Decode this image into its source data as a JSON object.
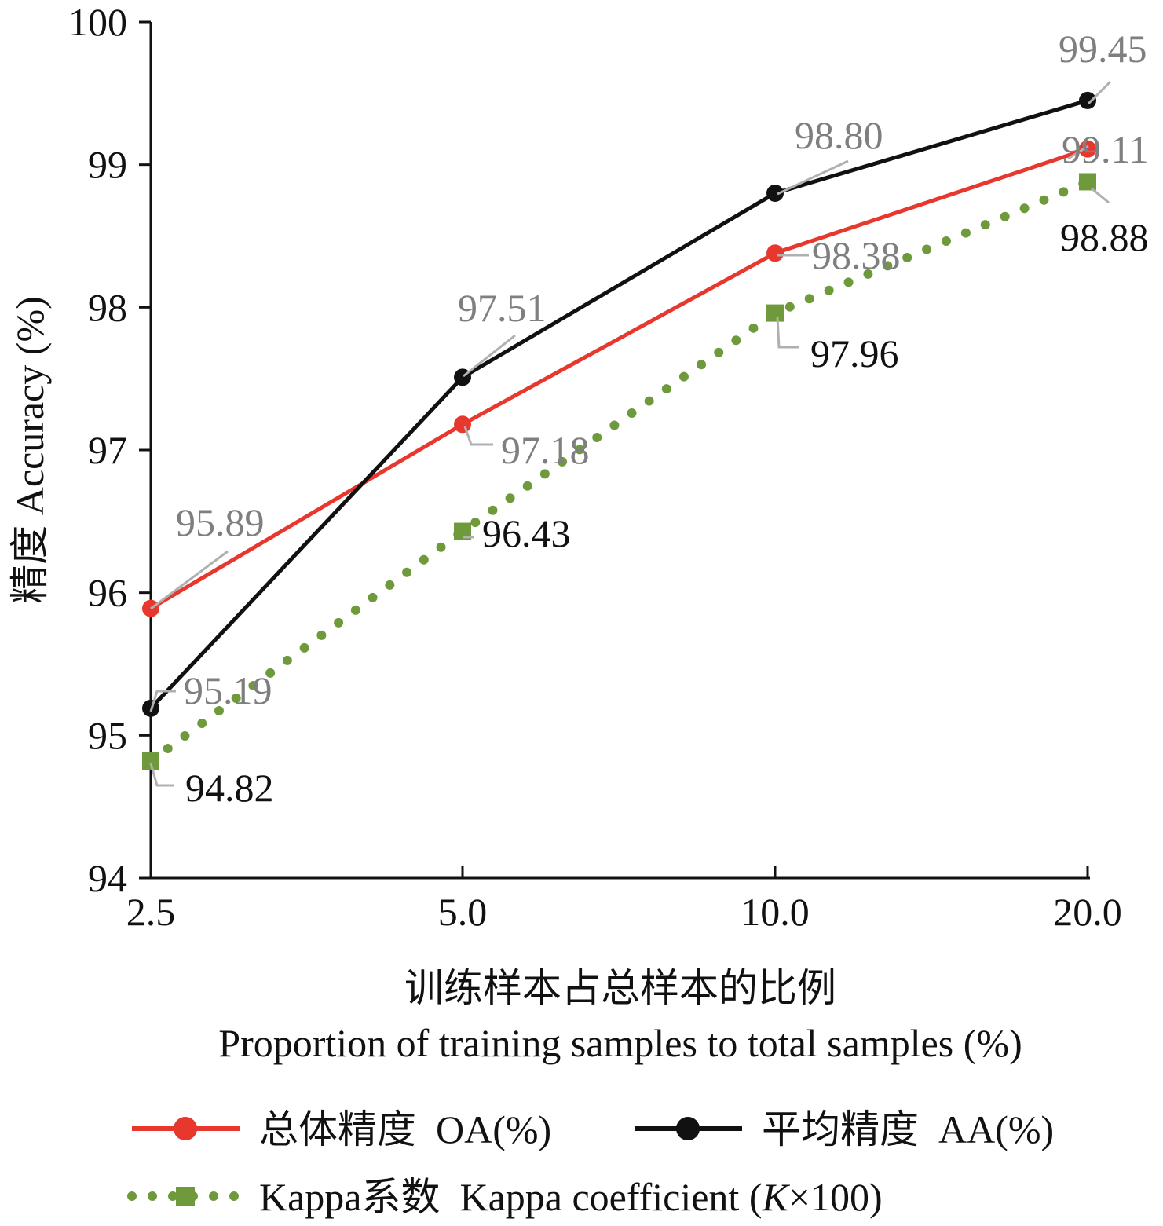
{
  "chart_data": {
    "type": "line",
    "categories": [
      "2.5",
      "5.0",
      "10.0",
      "20.0"
    ],
    "ylim": [
      94,
      100
    ],
    "yticks": [
      "94",
      "95",
      "96",
      "97",
      "98",
      "99",
      "100"
    ],
    "ylabel": "精度  Accuracy (%)",
    "xlabel_cn": "训练样本占总样本的比例",
    "xlabel_en": "Proportion of training samples to total samples (%)",
    "series": [
      {
        "name": "总体精度  OA(%)",
        "color": "#e8372d",
        "style": "solid",
        "marker": "circle",
        "values": [
          95.89,
          97.18,
          98.38,
          99.11
        ],
        "labels": [
          "95.89",
          "97.18",
          "98.38",
          "99.11"
        ]
      },
      {
        "name": "平均精度  AA(%)",
        "color": "#111111",
        "style": "solid",
        "marker": "circle",
        "values": [
          95.19,
          97.51,
          98.8,
          99.45
        ],
        "labels": [
          "95.19",
          "97.51",
          "98.80",
          "99.45"
        ]
      },
      {
        "name": "Kappa系数  Kappa coefficient (",
        "name_italic": "K",
        "name_suffix": "×100)",
        "color": "#6e9a3c",
        "style": "dotted",
        "marker": "square",
        "values": [
          94.82,
          96.43,
          97.96,
          98.88
        ],
        "labels": [
          "94.82",
          "96.43",
          "97.96",
          "98.88"
        ]
      }
    ]
  }
}
